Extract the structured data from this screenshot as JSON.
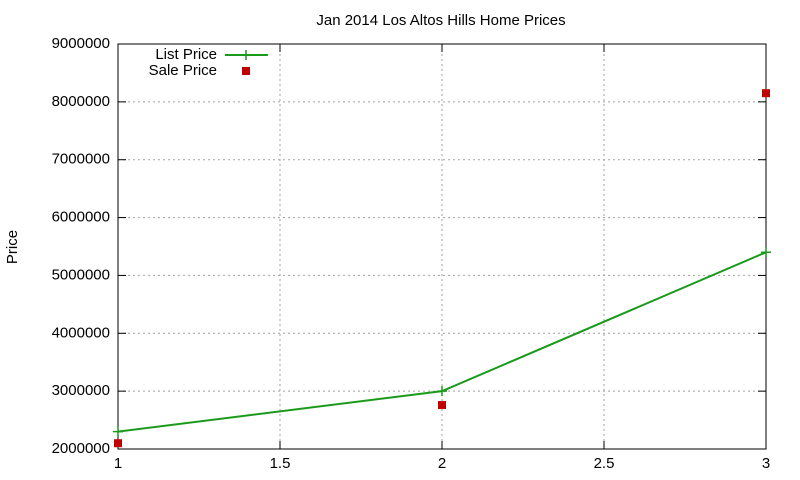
{
  "chart_data": {
    "type": "line",
    "title": "Jan 2014 Los Altos Hills Home Prices",
    "y_label": "Price",
    "x": [
      1,
      2,
      3
    ],
    "series": [
      {
        "name": "List Price",
        "color": "#1a9a1a",
        "style": "linespoints",
        "values": [
          2300000,
          3000000,
          5400000
        ]
      },
      {
        "name": "Sale Price",
        "color": "#c00000",
        "style": "points",
        "values": [
          2100000,
          2760000,
          8150000
        ]
      }
    ],
    "xlim": [
      1,
      3
    ],
    "xticks": [
      1,
      1.5,
      2,
      2.5,
      3
    ],
    "ylim": [
      2000000,
      9000000
    ],
    "yticks": [
      2000000,
      3000000,
      4000000,
      5000000,
      6000000,
      7000000,
      8000000,
      9000000
    ],
    "grid": true,
    "legend": "top-left"
  }
}
